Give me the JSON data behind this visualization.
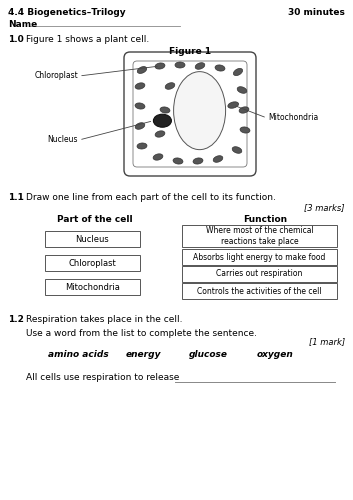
{
  "title_left": "4.4 Biogenetics–Trilogy",
  "title_right": "30 minutes",
  "name_label": "Name",
  "q10_label": "1.0",
  "q10_text": "Figure 1 shows a plant cell.",
  "figure1_label": "Figure 1",
  "q11_label": "1.1",
  "q11_text": "Draw one line from each part of the cell to its function.",
  "marks11": "[3 marks]",
  "col_left_header": "Part of the cell",
  "col_right_header": "Function",
  "left_boxes": [
    "Nucleus",
    "Chloroplast",
    "Mitochondria"
  ],
  "right_boxes": [
    "Where most of the chemical\nreactions take place",
    "Absorbs light energy to make food",
    "Carries out respiration",
    "Controls the activities of the cell"
  ],
  "q12_label": "1.2",
  "q12_text": "Respiration takes place in the cell.",
  "q12_instruction": "Use a word from the list to complete the sentence.",
  "marks12": "[1 mark]",
  "word_list": [
    "amino acids",
    "energy",
    "glucose",
    "oxygen"
  ],
  "sentence": "All cells use respiration to release",
  "bg_color": "#ffffff",
  "text_color": "#000000",
  "box_edge_color": "#555555"
}
